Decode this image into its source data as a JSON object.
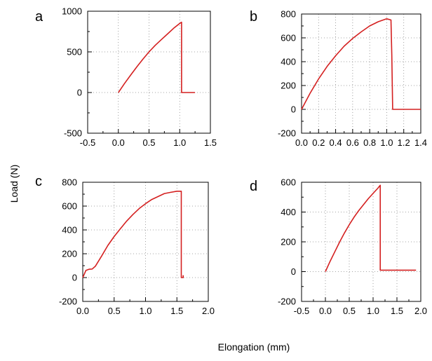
{
  "figure": {
    "ylabel": "Load (N)",
    "xlabel": "Elongation (mm)"
  },
  "chart_data": [
    {
      "type": "line",
      "panel": "a",
      "xlim": [
        -0.5,
        1.5
      ],
      "ylim": [
        -500,
        1000
      ],
      "xticks": [
        -0.5,
        0.0,
        0.5,
        1.0,
        1.5
      ],
      "xtick_labels": [
        "-0.5",
        "0.0",
        "0.5",
        "1.0",
        "1.5"
      ],
      "yticks": [
        -500,
        0,
        500,
        1000
      ],
      "ytick_labels": [
        "-500",
        "0",
        "500",
        "1000"
      ],
      "grid": true,
      "series": [
        {
          "color": "#d42020",
          "x": [
            0.0,
            0.1,
            0.2,
            0.3,
            0.4,
            0.5,
            0.6,
            0.7,
            0.8,
            0.9,
            1.0,
            1.03,
            1.03,
            1.05,
            1.25
          ],
          "y": [
            0,
            110,
            215,
            315,
            410,
            500,
            580,
            650,
            720,
            790,
            850,
            865,
            0,
            0,
            0
          ]
        }
      ]
    },
    {
      "type": "line",
      "panel": "b",
      "xlim": [
        0.0,
        1.4
      ],
      "ylim": [
        -200,
        800
      ],
      "xticks": [
        0.0,
        0.2,
        0.4,
        0.6,
        0.8,
        1.0,
        1.2,
        1.4
      ],
      "xtick_labels": [
        "0.0",
        "0.2",
        "0.4",
        "0.6",
        "0.8",
        "1.0",
        "1.2",
        "1.4"
      ],
      "yticks": [
        -200,
        0,
        200,
        400,
        600,
        800
      ],
      "ytick_labels": [
        "-200",
        "0",
        "200",
        "400",
        "600",
        "800"
      ],
      "grid": true,
      "series": [
        {
          "color": "#d42020",
          "x": [
            0.0,
            0.1,
            0.2,
            0.3,
            0.4,
            0.5,
            0.6,
            0.7,
            0.8,
            0.9,
            1.0,
            1.05,
            1.06,
            1.07,
            1.1,
            1.4
          ],
          "y": [
            0,
            135,
            255,
            360,
            450,
            530,
            595,
            650,
            700,
            735,
            760,
            750,
            450,
            0,
            0,
            0
          ]
        }
      ]
    },
    {
      "type": "line",
      "panel": "c",
      "xlim": [
        0.0,
        2.0
      ],
      "ylim": [
        -200,
        800
      ],
      "xticks": [
        0.0,
        0.5,
        1.0,
        1.5,
        2.0
      ],
      "xtick_labels": [
        "0.0",
        "0.5",
        "1.0",
        "1.5",
        "2.0"
      ],
      "yticks": [
        -200,
        0,
        200,
        400,
        600,
        800
      ],
      "ytick_labels": [
        "-200",
        "0",
        "200",
        "400",
        "600",
        "800"
      ],
      "grid": true,
      "series": [
        {
          "color": "#d42020",
          "x": [
            0.0,
            0.05,
            0.1,
            0.15,
            0.2,
            0.3,
            0.4,
            0.5,
            0.6,
            0.7,
            0.8,
            0.9,
            1.0,
            1.1,
            1.2,
            1.3,
            1.4,
            1.5,
            1.57,
            1.57,
            1.6,
            1.6
          ],
          "y": [
            0,
            60,
            70,
            72,
            95,
            180,
            270,
            345,
            410,
            475,
            530,
            580,
            620,
            655,
            680,
            705,
            715,
            725,
            725,
            0,
            0,
            20
          ]
        }
      ]
    },
    {
      "type": "line",
      "panel": "d",
      "xlim": [
        -0.5,
        2.0
      ],
      "ylim": [
        -200,
        600
      ],
      "xticks": [
        -0.5,
        0.0,
        0.5,
        1.0,
        1.5,
        2.0
      ],
      "xtick_labels": [
        "-0.5",
        "0.0",
        "0.5",
        "1.0",
        "1.5",
        "2.0"
      ],
      "yticks": [
        -200,
        0,
        200,
        400,
        600
      ],
      "ytick_labels": [
        "-200",
        "0",
        "200",
        "400",
        "600"
      ],
      "grid": true,
      "series": [
        {
          "color": "#d42020",
          "x": [
            0.0,
            0.1,
            0.2,
            0.3,
            0.4,
            0.5,
            0.6,
            0.7,
            0.8,
            0.9,
            1.0,
            1.1,
            1.15,
            1.15,
            1.9
          ],
          "y": [
            0,
            70,
            135,
            200,
            260,
            315,
            365,
            410,
            450,
            490,
            525,
            560,
            580,
            10,
            10
          ]
        }
      ]
    }
  ]
}
